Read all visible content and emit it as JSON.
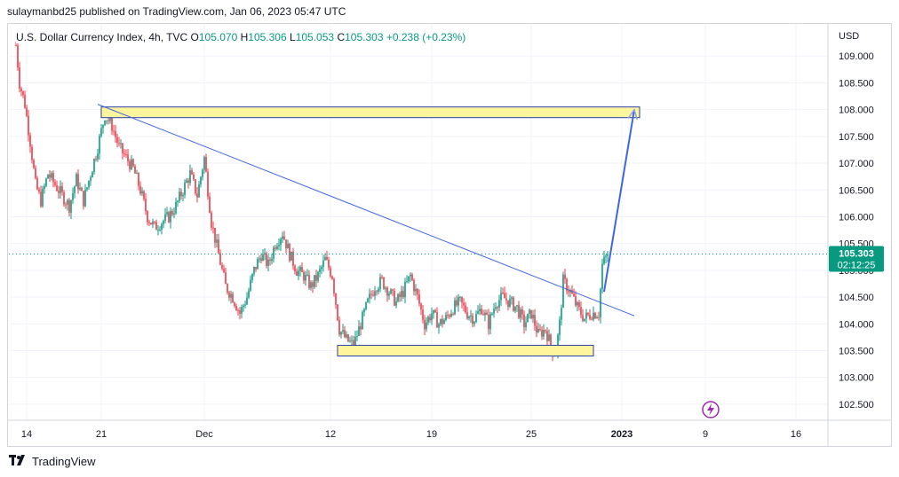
{
  "header": {
    "publisher_line": "sulaymanbd25 published on TradingView.com, Jan 06, 2023 05:47 UTC"
  },
  "legend": {
    "symbol": "U.S. Dollar Currency Index, 4h, TVC",
    "open_label": "O",
    "open": "105.070",
    "high_label": "H",
    "high": "105.306",
    "low_label": "L",
    "low": "105.053",
    "close_label": "C",
    "close": "105.303",
    "change": "+0.238 (+0.23%)"
  },
  "footer": {
    "brand": "TradingView"
  },
  "colors": {
    "up": "#089981",
    "down": "#f23645",
    "trendline": "#3f65e0",
    "zone_fill": "#fff59d",
    "zone_border": "#2b3fa8",
    "price_tag": "#089981",
    "grid": "#f0f3fa",
    "alert": "#9c27b0"
  },
  "icons": {
    "alert": "lightning-bolt-icon",
    "brand": "tradingview-logo-icon"
  },
  "chart_data": {
    "type": "candlestick",
    "currency": "USD",
    "ylim": [
      102.2,
      109.6
    ],
    "y_ticks": [
      "102.500",
      "103.000",
      "103.500",
      "104.000",
      "104.500",
      "105.000",
      "105.500",
      "106.000",
      "106.500",
      "107.000",
      "107.500",
      "108.000",
      "108.500",
      "109.000"
    ],
    "x_ticks": [
      "14",
      "21",
      "Dec",
      "12",
      "19",
      "25",
      "2023",
      "9",
      "16"
    ],
    "x_tick_index": [
      6,
      48,
      106,
      177,
      234,
      290,
      341,
      388,
      439
    ],
    "last_price_label": "105.303",
    "countdown_label": "02:12:25",
    "last_price": 105.303,
    "close_path": [
      [
        0,
        109.2
      ],
      [
        2,
        108.5
      ],
      [
        5,
        108.1
      ],
      [
        8,
        107.4
      ],
      [
        11,
        106.6
      ],
      [
        14,
        106.3
      ],
      [
        18,
        106.8
      ],
      [
        22,
        106.6
      ],
      [
        26,
        106.4
      ],
      [
        30,
        106.2
      ],
      [
        34,
        106.7
      ],
      [
        38,
        106.3
      ],
      [
        42,
        106.8
      ],
      [
        46,
        107.3
      ],
      [
        50,
        107.9
      ],
      [
        54,
        107.7
      ],
      [
        58,
        107.3
      ],
      [
        62,
        107.1
      ],
      [
        66,
        106.9
      ],
      [
        70,
        106.5
      ],
      [
        74,
        106.0
      ],
      [
        78,
        105.8
      ],
      [
        82,
        105.9
      ],
      [
        86,
        106.0
      ],
      [
        90,
        106.2
      ],
      [
        94,
        106.5
      ],
      [
        98,
        106.8
      ],
      [
        102,
        106.4
      ],
      [
        106,
        107.1
      ],
      [
        110,
        105.9
      ],
      [
        114,
        105.3
      ],
      [
        118,
        104.7
      ],
      [
        122,
        104.5
      ],
      [
        126,
        104.2
      ],
      [
        130,
        104.5
      ],
      [
        134,
        105.0
      ],
      [
        138,
        105.3
      ],
      [
        142,
        105.1
      ],
      [
        146,
        105.5
      ],
      [
        150,
        105.7
      ],
      [
        154,
        105.3
      ],
      [
        158,
        105.0
      ],
      [
        162,
        104.9
      ],
      [
        166,
        104.7
      ],
      [
        170,
        104.9
      ],
      [
        174,
        105.2
      ],
      [
        178,
        104.9
      ],
      [
        182,
        103.9
      ],
      [
        186,
        103.7
      ],
      [
        190,
        103.6
      ],
      [
        194,
        104.0
      ],
      [
        198,
        104.4
      ],
      [
        202,
        104.7
      ],
      [
        206,
        104.8
      ],
      [
        210,
        104.6
      ],
      [
        214,
        104.4
      ],
      [
        218,
        104.6
      ],
      [
        222,
        104.9
      ],
      [
        226,
        104.5
      ],
      [
        230,
        104.0
      ],
      [
        234,
        104.2
      ],
      [
        238,
        104.0
      ],
      [
        242,
        104.1
      ],
      [
        246,
        104.3
      ],
      [
        250,
        104.4
      ],
      [
        254,
        104.2
      ],
      [
        258,
        104.1
      ],
      [
        262,
        104.3
      ],
      [
        266,
        104.0
      ],
      [
        270,
        104.4
      ],
      [
        274,
        104.5
      ],
      [
        278,
        104.4
      ],
      [
        282,
        104.3
      ],
      [
        286,
        104.0
      ],
      [
        290,
        104.2
      ],
      [
        294,
        103.8
      ],
      [
        298,
        103.9
      ],
      [
        302,
        103.5
      ],
      [
        304,
        103.5
      ],
      [
        306,
        104.0
      ],
      [
        308,
        104.8
      ],
      [
        312,
        104.6
      ],
      [
        316,
        104.3
      ],
      [
        320,
        104.1
      ],
      [
        324,
        104.2
      ],
      [
        328,
        104.2
      ],
      [
        330,
        105.1
      ],
      [
        333,
        105.3
      ]
    ],
    "annotations": {
      "resistance_zone": {
        "x_from": 48,
        "x_to": 351,
        "y_from": 107.85,
        "y_to": 108.05
      },
      "support_zone": {
        "x_from": 181,
        "x_to": 325,
        "y_from": 103.4,
        "y_to": 103.6
      },
      "trendline": {
        "x1": 46,
        "y1": 108.1,
        "x2": 348,
        "y2": 104.15
      },
      "projection_arrow": {
        "x1": 331,
        "y1": 104.6,
        "x2": 348,
        "y2": 108.0
      }
    }
  }
}
